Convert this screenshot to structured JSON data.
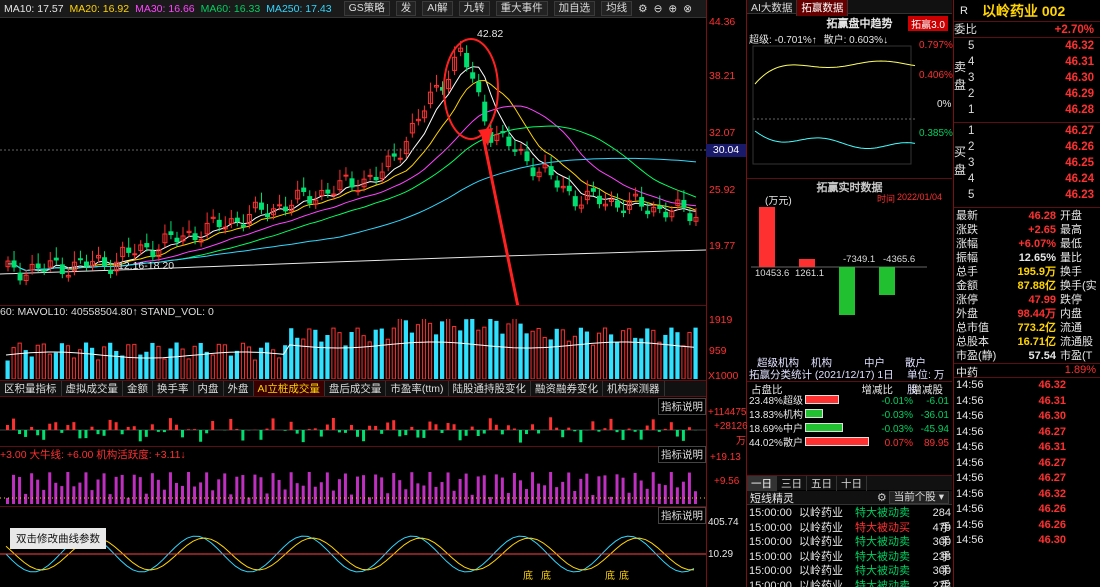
{
  "ma_bar": {
    "ma10": "MA10: 17.57",
    "ma20": "MA20: 16.92",
    "ma30": "MA30: 16.66",
    "ma60": "MA60: 16.33",
    "ma250": "MA250: 17.43"
  },
  "toolbar": {
    "strategy": "GS策略",
    "fa": "发",
    "ai": "AI解",
    "jiuzhuan": "九转",
    "event": "重大事件",
    "add_watch": "加自选",
    "cancel": "均线"
  },
  "price_axis": [
    "44.36",
    "38.21",
    "32.07",
    "25.92",
    "19.77"
  ],
  "current_price_tag": "30.04",
  "peak_label": "42.82",
  "low_label": "12.16-18.20",
  "volume": {
    "header": "60: MAVOL10: 40558504.80↑ STAND_VOL: 0",
    "axis": [
      "1919",
      "959",
      "X1000"
    ]
  },
  "indicator_tabs": [
    "区积量指标",
    "虚拟成交量",
    "金额",
    "换手率",
    "内盘",
    "外盘",
    "AI立桩成交量",
    "盘后成交量",
    "市盈率(ttm)",
    "陆股通持股变化",
    "融资融券变化",
    "机构探测器"
  ],
  "indicator_tab_active": 6,
  "ind1": {
    "help": "指标说明",
    "axis_top": "+114475",
    "axis_bottom": "+28126",
    "unit": "万"
  },
  "ind2": {
    "header": "+3.00 大牛线: +6.00 机构活跃度: +3.11↓",
    "help": "指标说明",
    "axis_top": "+19.13",
    "axis_bottom": "+9.56"
  },
  "ind3": {
    "help": "指标说明",
    "axis_top": "405.74",
    "axis_bottom": "10.29",
    "edit_btn": "双击修改曲线参数",
    "labels": [
      "底",
      "底",
      "底",
      "底"
    ]
  },
  "middle": {
    "tabs": [
      "AI大数据",
      "拓赢数据"
    ],
    "trend_title": "拓赢盘中趋势",
    "badge": "拓赢3.0",
    "super_lbl": "超级: -0.701%↑",
    "retail_lbl": "散户: 0.603%↓",
    "trend_axis": [
      "0.797%",
      "0.406%",
      "0%",
      "0.385%"
    ],
    "realtime_title": "拓赢实时数据",
    "unit": "(万元)",
    "time_lbl": "时间",
    "time_val": "2022/01/04",
    "bars": [
      {
        "label": "10453.6",
        "cat": "超级机构"
      },
      {
        "label": "1261.1",
        "cat": "机构"
      },
      {
        "label": "-7349.1",
        "cat": "中户"
      },
      {
        "label": "-4365.6",
        "cat": "散户"
      }
    ],
    "bar_cats": [
      "超级机构",
      "机构",
      "中户",
      "散户"
    ],
    "stats_title": "拓赢分类统计 (2021/12/17) 1日",
    "stats_unit": "单位: 万股",
    "stats_headers": [
      "占盘比",
      "增减比",
      "增减股"
    ],
    "stats_rows": [
      {
        "pct": "23.48%",
        "name": "超级",
        "chg": "-0.01%",
        "shares": "-6.01"
      },
      {
        "pct": "13.83%",
        "name": "机构",
        "chg": "-0.03%",
        "shares": "-36.01"
      },
      {
        "pct": "18.69%",
        "name": "中户",
        "chg": "-0.03%",
        "shares": "-45.94"
      },
      {
        "pct": "44.02%",
        "name": "散户",
        "chg": "0.07%",
        "shares": "89.95"
      }
    ],
    "period_tabs": [
      "一日",
      "三日",
      "五日",
      "十日"
    ],
    "short_line": "短线精灵",
    "current_stock": "当前个股",
    "trades": [
      {
        "time": "15:00:00",
        "stock": "以岭药业",
        "type": "特大被动卖",
        "vol": "284手"
      },
      {
        "time": "15:00:00",
        "stock": "以岭药业",
        "type": "特大被动买",
        "vol": "479手"
      },
      {
        "time": "15:00:00",
        "stock": "以岭药业",
        "type": "特大被动卖",
        "vol": "300手"
      },
      {
        "time": "15:00:00",
        "stock": "以岭药业",
        "type": "特大被动卖",
        "vol": "238手"
      },
      {
        "time": "15:00:00",
        "stock": "以岭药业",
        "type": "特大被动卖",
        "vol": "300手"
      },
      {
        "time": "15:00:00",
        "stock": "以岭药业",
        "type": "特大被动卖",
        "vol": "272手"
      }
    ]
  },
  "right": {
    "r_label": "R",
    "stock_name": "以岭药业 002",
    "weibi_lbl": "委比",
    "weibi_val": "+2.70%",
    "sell_label": "卖盘",
    "buy_label": "买盘",
    "sells": [
      {
        "k": "5",
        "v": "46.32"
      },
      {
        "k": "4",
        "v": "46.31"
      },
      {
        "k": "3",
        "v": "46.30"
      },
      {
        "k": "2",
        "v": "46.29"
      },
      {
        "k": "1",
        "v": "46.28"
      }
    ],
    "buys": [
      {
        "k": "1",
        "v": "46.27"
      },
      {
        "k": "2",
        "v": "46.26"
      },
      {
        "k": "3",
        "v": "46.25"
      },
      {
        "k": "4",
        "v": "46.24"
      },
      {
        "k": "5",
        "v": "46.23"
      }
    ],
    "stats": [
      {
        "k": "最新",
        "v": "46.28",
        "k2": "开盘",
        "c": "red"
      },
      {
        "k": "涨跌",
        "v": "+2.65",
        "k2": "最高",
        "c": "red"
      },
      {
        "k": "涨幅",
        "v": "+6.07%",
        "k2": "最低",
        "c": "red"
      },
      {
        "k": "振幅",
        "v": "12.65%",
        "k2": "量比",
        "c": "wht"
      },
      {
        "k": "总手",
        "v": "195.9万",
        "k2": "换手",
        "c": "yel"
      },
      {
        "k": "金额",
        "v": "87.88亿",
        "k2": "换手(实",
        "c": "yel"
      },
      {
        "k": "涨停",
        "v": "47.99",
        "k2": "跌停",
        "c": "red"
      },
      {
        "k": "外盘",
        "v": "98.44万",
        "k2": "内盘",
        "c": "red"
      },
      {
        "k": "总市值",
        "v": "773.2亿",
        "k2": "流通",
        "c": "yel"
      },
      {
        "k": "总股本",
        "v": "16.71亿",
        "k2": "流通股",
        "c": "yel"
      },
      {
        "k": "市盈(静)",
        "v": "57.54",
        "k2": "市盈(T",
        "c": "wht"
      }
    ],
    "zhongyao": "中药",
    "zhongyao_val": "1.89%",
    "ticks": [
      {
        "t": "14:56",
        "p": "46.32",
        "c": "red"
      },
      {
        "t": "14:56",
        "p": "46.31",
        "c": "red"
      },
      {
        "t": "14:56",
        "p": "46.30",
        "c": "red"
      },
      {
        "t": "14:56",
        "p": "46.27",
        "c": "red"
      },
      {
        "t": "14:56",
        "p": "46.31",
        "c": "red"
      },
      {
        "t": "14:56",
        "p": "46.27",
        "c": "red"
      },
      {
        "t": "14:56",
        "p": "46.27",
        "c": "red"
      },
      {
        "t": "14:56",
        "p": "46.32",
        "c": "red"
      },
      {
        "t": "14:56",
        "p": "46.26",
        "c": "red"
      },
      {
        "t": "14:56",
        "p": "46.26",
        "c": "red"
      },
      {
        "t": "14:56",
        "p": "46.30",
        "c": "red"
      }
    ]
  },
  "colors": {
    "up": "#ff3030",
    "down": "#00e070",
    "ma5": "#ffffff",
    "ma10": "#ffd400",
    "ma20": "#ff44ff",
    "ma30": "#00ff60",
    "ma60": "#2fd8ff",
    "ma250": "#e8e8e8"
  }
}
